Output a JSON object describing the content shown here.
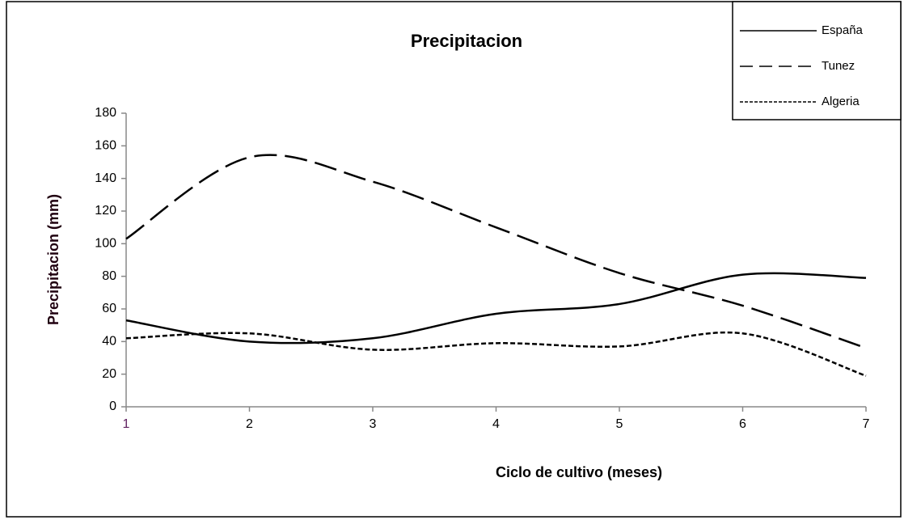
{
  "chart_data": {
    "type": "line",
    "title": "Precipitacion",
    "x_label": "Ciclo de cultivo (meses)",
    "y_label": "Precipitacion  (mm)",
    "x": [
      1,
      2,
      3,
      4,
      5,
      6,
      7
    ],
    "xlim": [
      1,
      7
    ],
    "xticks": [
      1,
      2,
      3,
      4,
      5,
      6,
      7
    ],
    "ylim": [
      0,
      180
    ],
    "yticks": [
      0,
      20,
      40,
      60,
      80,
      100,
      120,
      140,
      160,
      180
    ],
    "smooth": true,
    "legend": "top-right",
    "series": [
      {
        "name": "España",
        "color": "#000000",
        "style": "solid",
        "values": [
          53,
          40,
          42,
          57,
          63,
          81,
          79
        ]
      },
      {
        "name": "Tunez",
        "color": "#000000",
        "style": "dashed",
        "values": [
          103,
          153,
          138,
          110,
          82,
          62,
          36
        ]
      },
      {
        "name": "Algeria",
        "color": "#000000",
        "style": "dotted",
        "values": [
          42,
          45,
          35,
          39,
          37,
          45,
          19
        ]
      }
    ]
  }
}
